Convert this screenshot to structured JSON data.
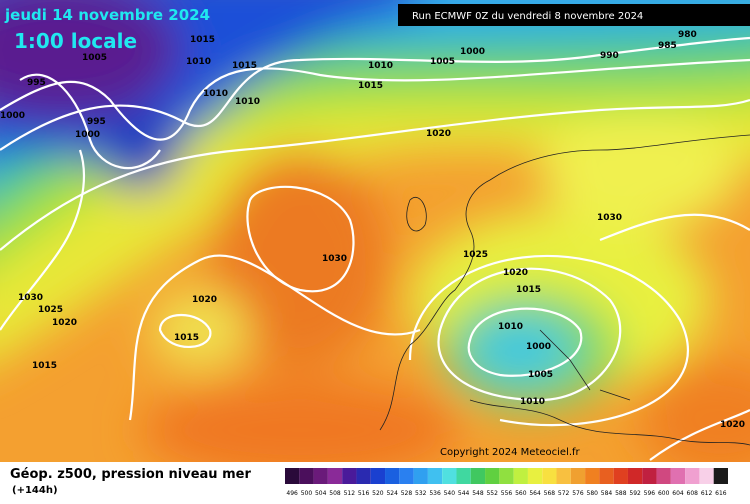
{
  "header": {
    "date": "jeudi 14 novembre 2024",
    "time": "1:00 locale",
    "run": "Run ECMWF 0Z du vendredi 8 novembre 2024"
  },
  "map": {
    "isobar_labels": [
      "1015",
      "1005",
      "1010",
      "1015",
      "995",
      "1010",
      "1010",
      "1000",
      "995",
      "1000",
      "1010",
      "1015",
      "1005",
      "1000",
      "990",
      "985",
      "980",
      "1020",
      "1030",
      "1030",
      "1025",
      "1020",
      "1015",
      "1020",
      "1015",
      "1030",
      "1025",
      "1020",
      "1015",
      "1010",
      "1000",
      "1005",
      "1010",
      "1020"
    ],
    "copyright": "Copyright 2024 Meteociel.fr"
  },
  "footer": {
    "title": "Géop. z500, pression niveau mer",
    "lead": "(+144h)"
  },
  "legend": {
    "labels": [
      "496",
      "500",
      "504",
      "508",
      "512",
      "516",
      "520",
      "524",
      "528",
      "532",
      "536",
      "540",
      "544",
      "548",
      "552",
      "556",
      "560",
      "564",
      "568",
      "572",
      "576",
      "580",
      "584",
      "588",
      "592",
      "596",
      "600",
      "604",
      "608",
      "612",
      "616"
    ],
    "colors": [
      "#2a0a3a",
      "#4b0f5c",
      "#6a1a7a",
      "#8a2a98",
      "#4a1a9a",
      "#2a2ab0",
      "#1a40d0",
      "#1a60e0",
      "#2a80f0",
      "#30a0f0",
      "#40c0f0",
      "#50e0e0",
      "#40d8a0",
      "#40c860",
      "#60d040",
      "#90e040",
      "#c0f040",
      "#e8f040",
      "#f8e040",
      "#f8c040",
      "#f0a030",
      "#f08020",
      "#e86020",
      "#e04020",
      "#d02828",
      "#c02040",
      "#d04880",
      "#e070b0",
      "#f0a0d0",
      "#f8d0e8",
      "#1a1a1a"
    ]
  }
}
